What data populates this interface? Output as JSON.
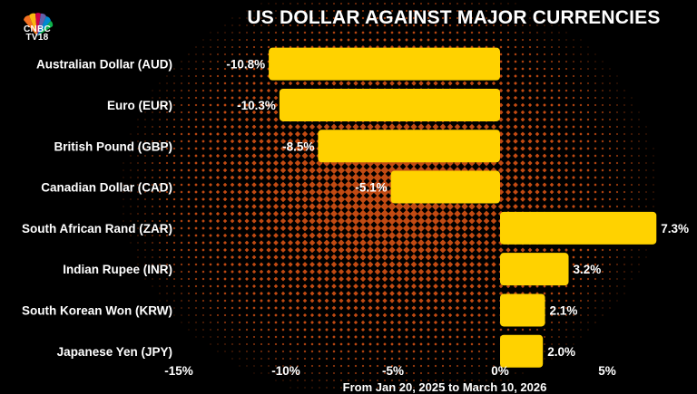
{
  "brand": {
    "line1": "CNBC",
    "line2": "TV18"
  },
  "title": "US DOLLAR AGAINST MAJOR CURRENCIES",
  "footnote": "From Jan 20, 2025 to March 10, 2026",
  "colors": {
    "background": "#000000",
    "pattern": "#c24a12",
    "bar": "#ffd200",
    "text": "#ffffff"
  },
  "chart_data": {
    "type": "bar",
    "orientation": "horizontal",
    "title": "US DOLLAR AGAINST MAJOR CURRENCIES",
    "categories": [
      "Australian Dollar (AUD)",
      "Euro (EUR)",
      "British Pound (GBP)",
      "Canadian Dollar (CAD)",
      "South African Rand (ZAR)",
      "Indian Rupee (INR)",
      "South Korean Won (KRW)",
      "Japanese Yen (JPY)"
    ],
    "values": [
      -10.8,
      -10.3,
      -8.5,
      -5.1,
      7.3,
      3.2,
      2.1,
      2.0
    ],
    "labels": [
      "-10.8%",
      "-10.3%",
      "-8.5%",
      "-5.1%",
      "7.3%",
      "3.2%",
      "2.1%",
      "2.0%"
    ],
    "xlim": [
      -15,
      5
    ],
    "xticks": [
      -15,
      -10,
      -5,
      0,
      5
    ],
    "xtick_labels": [
      "-15%",
      "-10%",
      "-5%",
      "0%",
      "5%"
    ],
    "grid": false,
    "legend": "none"
  }
}
